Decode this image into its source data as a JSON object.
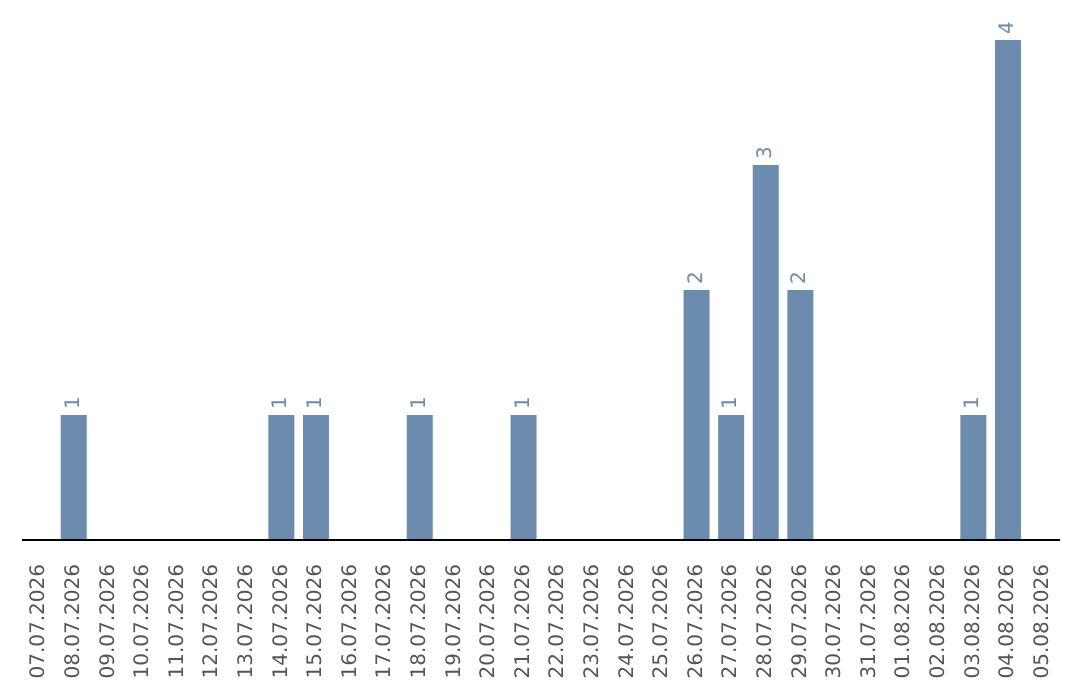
{
  "chart_data": {
    "type": "bar",
    "categories": [
      "07.07.2026",
      "08.07.2026",
      "09.07.2026",
      "10.07.2026",
      "11.07.2026",
      "12.07.2026",
      "13.07.2026",
      "14.07.2026",
      "15.07.2026",
      "16.07.2026",
      "17.07.2026",
      "18.07.2026",
      "19.07.2026",
      "20.07.2026",
      "21.07.2026",
      "22.07.2026",
      "23.07.2026",
      "24.07.2026",
      "25.07.2026",
      "26.07.2026",
      "27.07.2026",
      "28.07.2026",
      "29.07.2026",
      "30.07.2026",
      "31.07.2026",
      "01.08.2026",
      "02.08.2026",
      "03.08.2026",
      "04.08.2026",
      "05.08.2026"
    ],
    "values": [
      0,
      1,
      0,
      0,
      0,
      0,
      0,
      1,
      1,
      0,
      0,
      1,
      0,
      0,
      1,
      0,
      0,
      0,
      0,
      2,
      1,
      3,
      2,
      0,
      0,
      0,
      0,
      1,
      4,
      0
    ],
    "value_labels": [
      null,
      "1",
      null,
      null,
      null,
      null,
      null,
      "1",
      "1",
      null,
      null,
      "1",
      null,
      null,
      "1",
      null,
      null,
      null,
      null,
      "2",
      "1",
      "3",
      "2",
      null,
      null,
      null,
      null,
      "1",
      "4",
      null
    ],
    "color": "#6b8cae",
    "tick_labels": "x",
    "grid": false,
    "legend": false
  }
}
